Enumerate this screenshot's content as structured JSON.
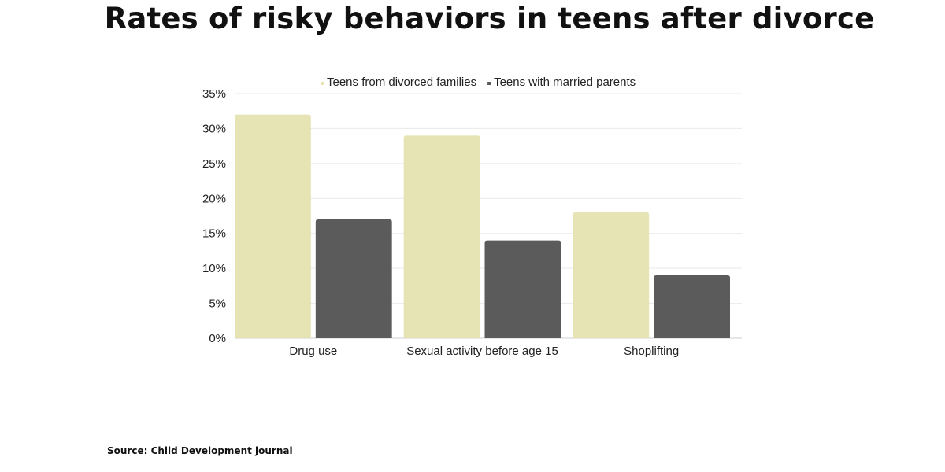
{
  "source_text": "Source: Child Development journal",
  "chart_data": {
    "type": "bar",
    "title": "Rates of risky behaviors in teens after divorce",
    "categories": [
      "Drug use",
      "Sexual activity before age 15",
      "Shoplifting"
    ],
    "series": [
      {
        "name": "Teens from divorced families",
        "values": [
          32,
          29,
          18
        ],
        "color": "#e6e3b4"
      },
      {
        "name": "Teens with married parents",
        "values": [
          17,
          14,
          9
        ],
        "color": "#5b5b5b"
      }
    ],
    "ylim": [
      0,
      35
    ],
    "yticks": [
      0,
      5,
      10,
      15,
      20,
      25,
      30,
      35
    ],
    "tick_suffix": "%",
    "legend_position": "top",
    "grid": true,
    "xlabel": "",
    "ylabel": ""
  }
}
